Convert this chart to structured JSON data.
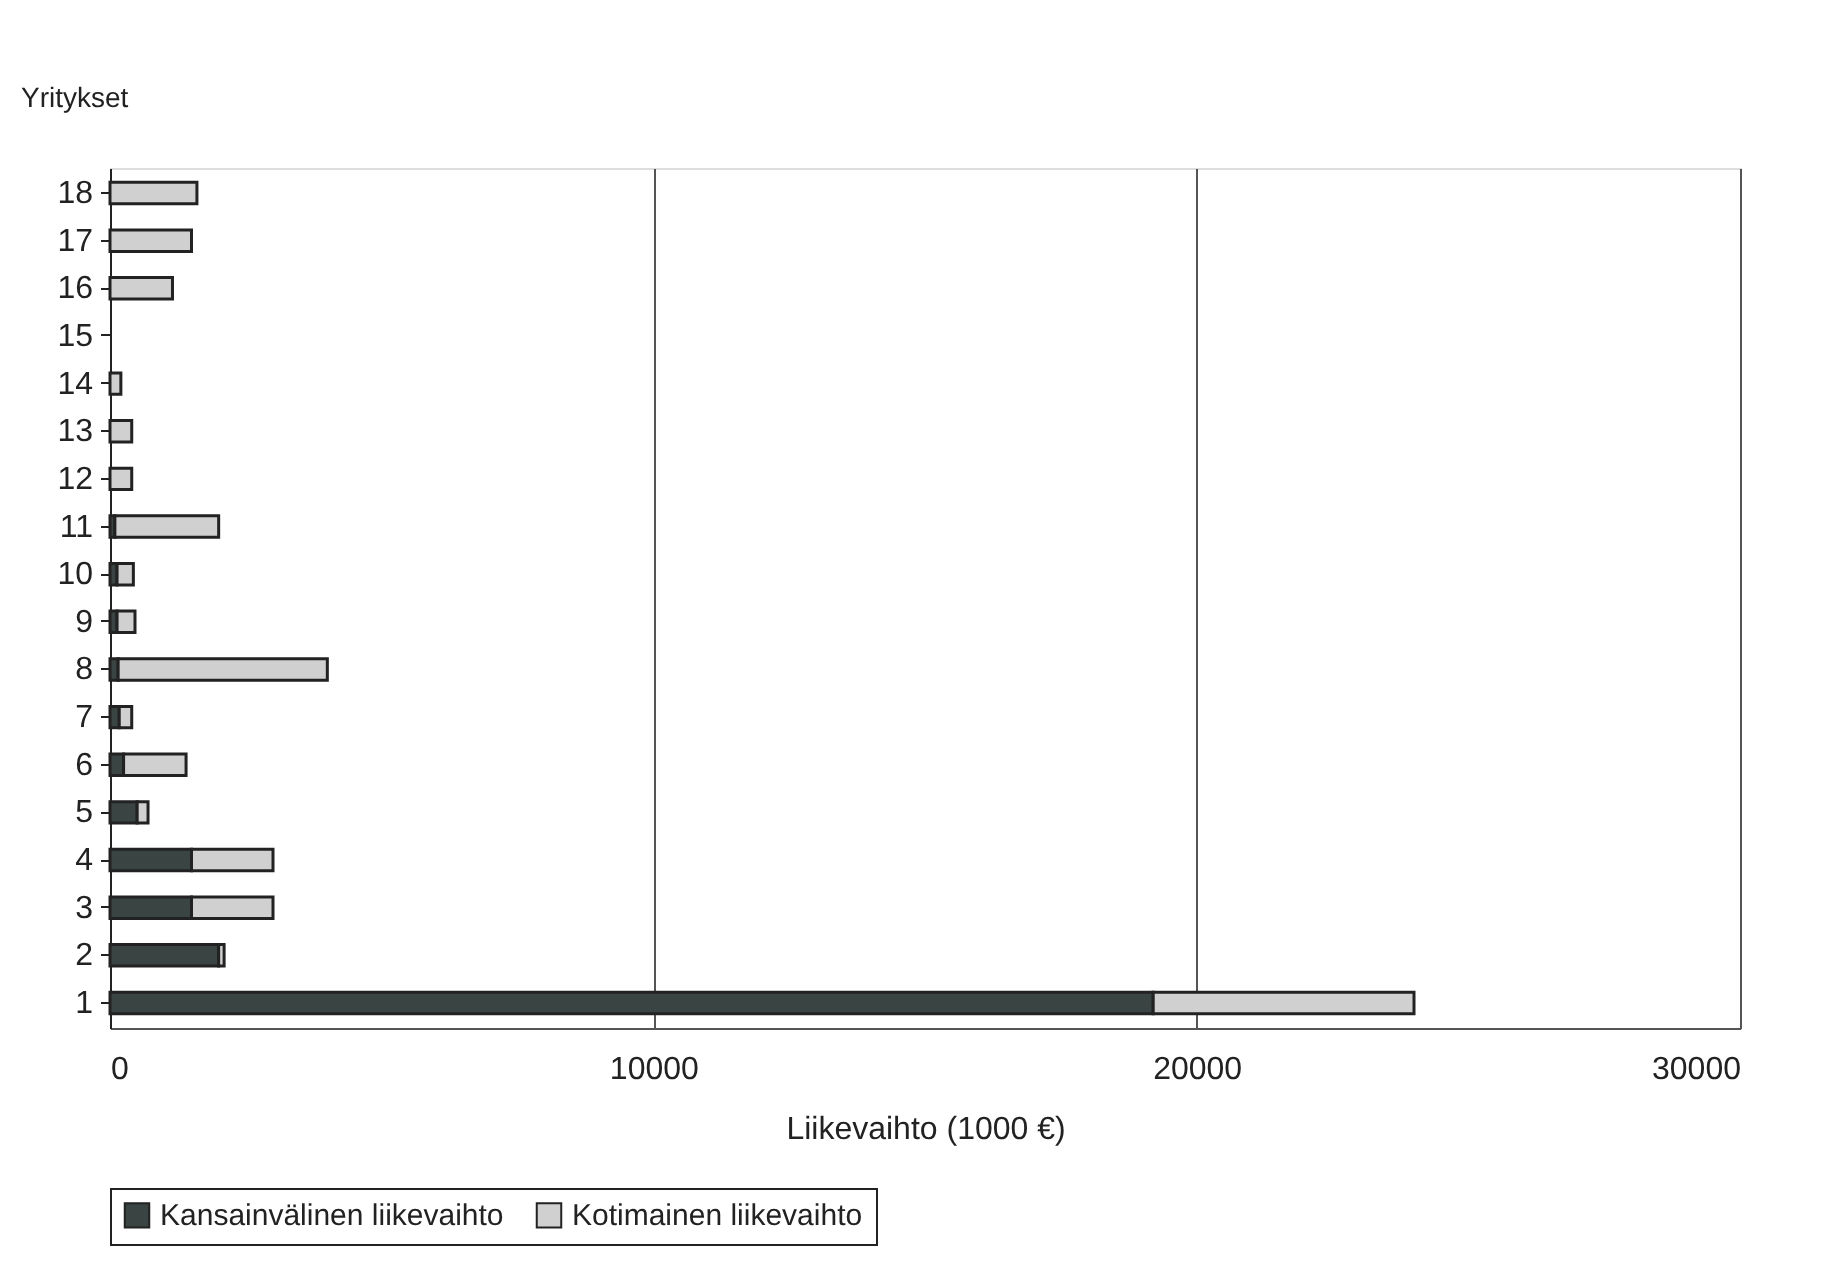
{
  "chart_data": {
    "type": "bar",
    "orientation": "horizontal",
    "stacked": true,
    "ylabel": "Yritykset",
    "xlabel": "Liikevaihto (1000 €)",
    "categories": [
      "18",
      "17",
      "16",
      "15",
      "14",
      "13",
      "12",
      "11",
      "10",
      "9",
      "8",
      "7",
      "6",
      "5",
      "4",
      "3",
      "2",
      "1"
    ],
    "series": [
      {
        "name": "Kansainvälinen liikevaihto",
        "color": "#3a4443",
        "values": [
          0,
          0,
          0,
          0,
          0,
          0,
          0,
          90,
          130,
          130,
          150,
          170,
          250,
          500,
          1500,
          1500,
          2000,
          19200
        ]
      },
      {
        "name": "Kotimainen liikevaihto",
        "color": "#d0d0d0",
        "values": [
          1600,
          1500,
          1150,
          0,
          200,
          400,
          400,
          1910,
          300,
          330,
          3850,
          230,
          1150,
          200,
          1500,
          1500,
          100,
          4800
        ]
      }
    ],
    "xlim": [
      0,
      30000
    ],
    "xticks": [
      0,
      10000,
      20000,
      30000
    ],
    "grid": "x",
    "legend": "bottom"
  }
}
